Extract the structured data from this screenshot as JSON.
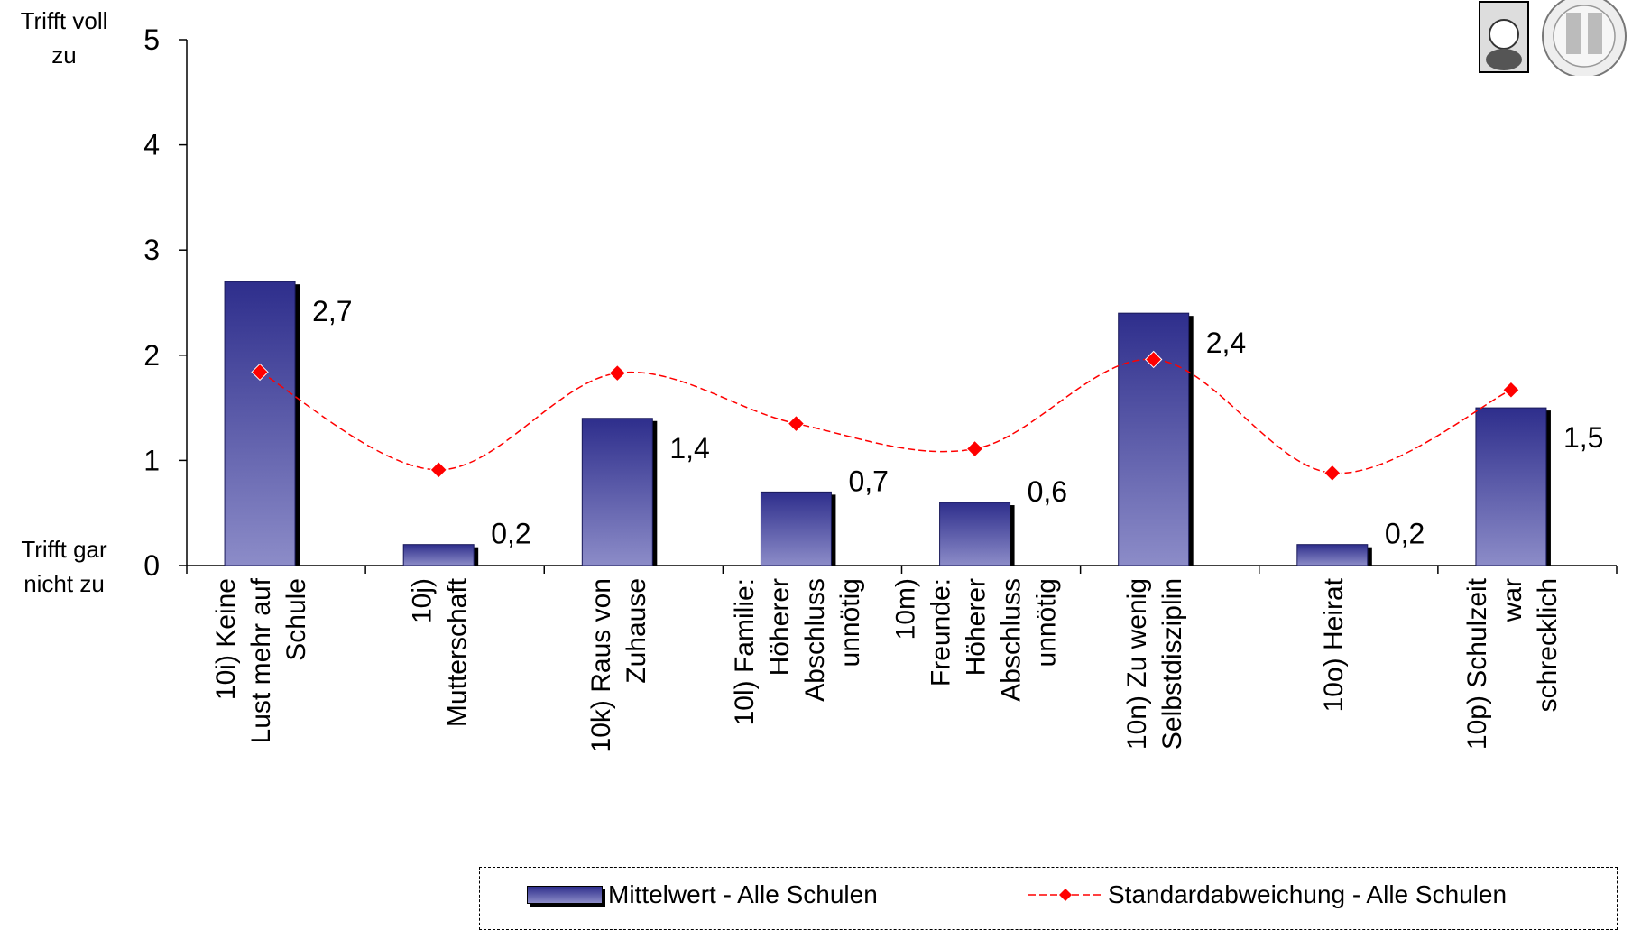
{
  "chart_data": {
    "type": "bar",
    "categories": [
      "10i) Keine Lust mehr auf Schule",
      "10j) Mutterschaft",
      "10k) Raus von Zuhause",
      "10l) Familie: Höherer Abschluss unnötig",
      "10m) Freunde: Höherer Abschluss unnötig",
      "10n) Zu wenig Selbstdisziplin",
      "10o) Heirat",
      "10p) Schulzeit war schrecklich"
    ],
    "category_lines": [
      [
        "10i) Keine",
        "Lust mehr auf",
        "Schule"
      ],
      [
        "10j)",
        "Mutterschaft"
      ],
      [
        "10k) Raus von",
        "Zuhause"
      ],
      [
        "10l) Familie:",
        "Höherer",
        "Abschluss",
        "unnötig"
      ],
      [
        "10m)",
        "Freunde:",
        "Höherer",
        "Abschluss",
        "unnötig"
      ],
      [
        "10n) Zu wenig",
        "Selbstdisziplin"
      ],
      [
        "10o) Heirat"
      ],
      [
        "10p) Schulzeit",
        "war",
        "schrecklich"
      ]
    ],
    "series": [
      {
        "name": "Mittelwert - Alle Schulen",
        "kind": "bar",
        "values": [
          2.7,
          0.2,
          1.4,
          0.7,
          0.6,
          2.4,
          0.2,
          1.5
        ],
        "labels": [
          "2,7",
          "0,2",
          "1,4",
          "0,7",
          "0,6",
          "2,4",
          "0,2",
          "1,5"
        ]
      },
      {
        "name": "Standardabweichung - Alle Schulen",
        "kind": "line",
        "values": [
          1.84,
          0.91,
          1.83,
          1.35,
          1.11,
          1.96,
          0.88,
          1.67
        ]
      }
    ],
    "ylim": [
      0,
      5
    ],
    "yticks": [
      "0",
      "1",
      "2",
      "3",
      "4",
      "5"
    ],
    "ylabel_top": "Trifft voll zu",
    "ylabel_bottom": "Trifft gar nicht zu",
    "legend_position": "bottom-right",
    "grid": false,
    "colors": {
      "bar_top": "#2e2e8c",
      "bar_bottom": "#8c8cc8",
      "line": "#ff0000",
      "marker": "#ff0000"
    }
  },
  "legend": {
    "bar_label": "Mittelwert - Alle Schulen",
    "line_label": "Standardabweichung - Alle Schulen"
  },
  "logo": {
    "icon": "university-seal-logo"
  }
}
